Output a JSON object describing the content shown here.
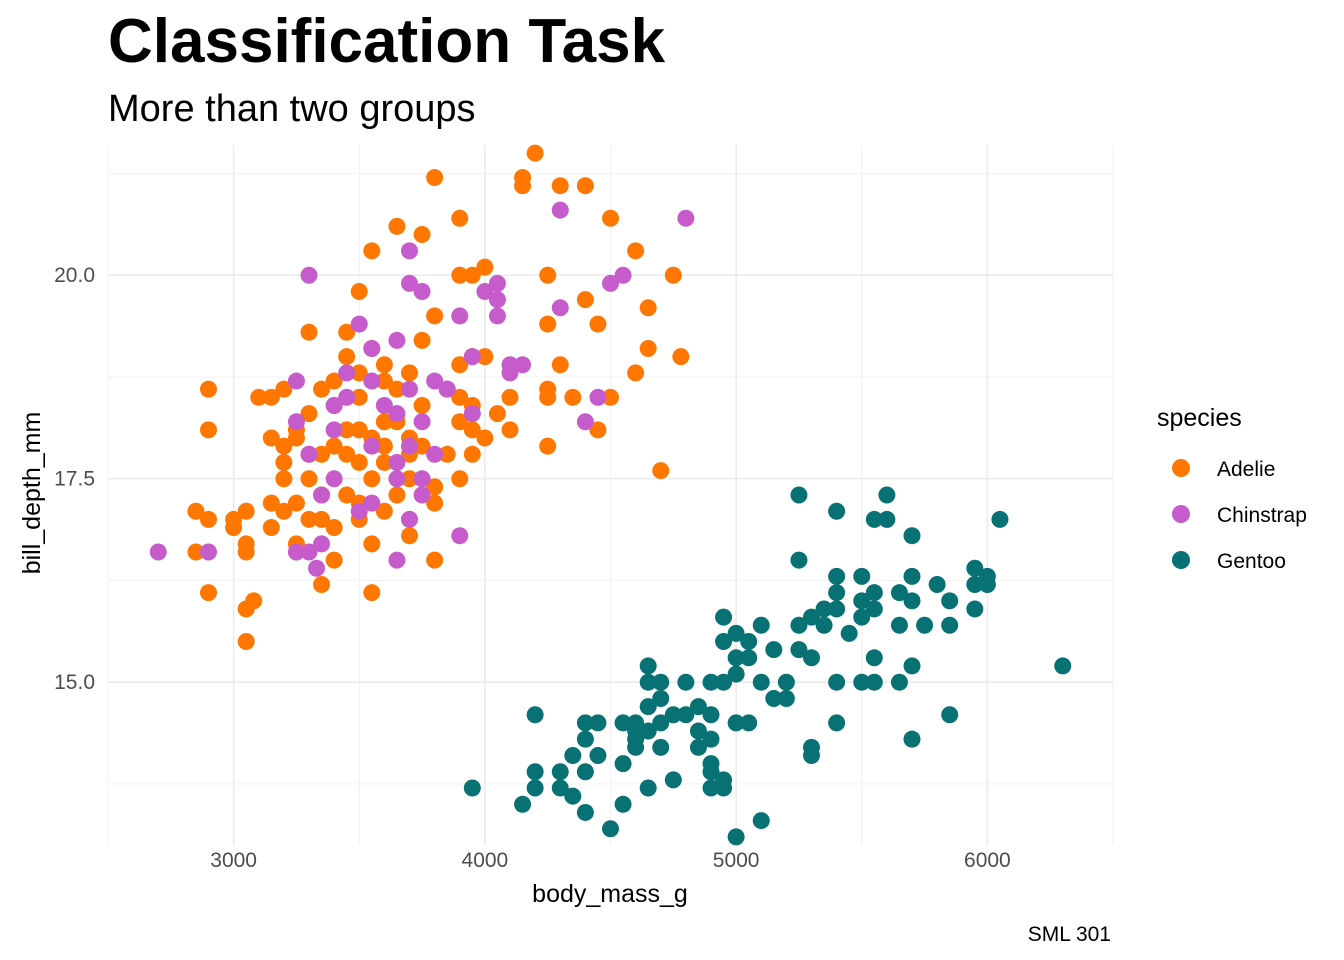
{
  "chart_data": {
    "type": "scatter",
    "title": "Classification Task",
    "subtitle": "More than two groups",
    "xlabel": "body_mass_g",
    "ylabel": "bill_depth_mm",
    "caption": "SML 301",
    "xlim": [
      2500,
      6500
    ],
    "ylim": [
      13.0,
      21.6
    ],
    "x_ticks": [
      3000,
      4000,
      5000,
      6000
    ],
    "x_tick_labels": [
      "3000",
      "4000",
      "5000",
      "6000"
    ],
    "y_ticks": [
      15.0,
      17.5,
      20.0
    ],
    "y_tick_labels": [
      "15.0",
      "17.5",
      "20.0"
    ],
    "grid": true,
    "legend": {
      "title": "species",
      "placement": "right"
    },
    "series": [
      {
        "name": "Adelie",
        "color": "#ff7700",
        "points": [
          [
            4200,
            21.5
          ],
          [
            4150,
            21.2
          ],
          [
            3800,
            21.2
          ],
          [
            4150,
            21.1
          ],
          [
            4400,
            21.1
          ],
          [
            4300,
            21.1
          ],
          [
            3900,
            20.7
          ],
          [
            4500,
            20.7
          ],
          [
            3650,
            20.6
          ],
          [
            3750,
            20.5
          ],
          [
            3550,
            20.3
          ],
          [
            4600,
            20.3
          ],
          [
            4000,
            20.1
          ],
          [
            3950,
            20.0
          ],
          [
            3900,
            20.0
          ],
          [
            4250,
            20.0
          ],
          [
            4750,
            20.0
          ],
          [
            3500,
            19.8
          ],
          [
            4400,
            19.7
          ],
          [
            4650,
            19.6
          ],
          [
            3800,
            19.5
          ],
          [
            3300,
            19.3
          ],
          [
            3450,
            19.3
          ],
          [
            4450,
            19.4
          ],
          [
            4250,
            19.4
          ],
          [
            3750,
            19.2
          ],
          [
            3550,
            19.1
          ],
          [
            3450,
            19.0
          ],
          [
            4000,
            19.0
          ],
          [
            3950,
            19.0
          ],
          [
            4650,
            19.1
          ],
          [
            3600,
            18.9
          ],
          [
            3500,
            18.8
          ],
          [
            3900,
            18.9
          ],
          [
            3700,
            18.8
          ],
          [
            4300,
            18.9
          ],
          [
            4600,
            18.8
          ],
          [
            4780,
            19.0
          ],
          [
            3400,
            18.7
          ],
          [
            3600,
            18.7
          ],
          [
            3650,
            18.6
          ],
          [
            3850,
            18.6
          ],
          [
            4250,
            18.6
          ],
          [
            3350,
            18.6
          ],
          [
            3200,
            18.6
          ],
          [
            2900,
            18.6
          ],
          [
            4100,
            18.5
          ],
          [
            3150,
            18.5
          ],
          [
            3100,
            18.5
          ],
          [
            3500,
            18.5
          ],
          [
            3900,
            18.5
          ],
          [
            4350,
            18.5
          ],
          [
            4250,
            18.5
          ],
          [
            4500,
            18.5
          ],
          [
            3400,
            18.4
          ],
          [
            3750,
            18.4
          ],
          [
            3950,
            18.4
          ],
          [
            3300,
            18.3
          ],
          [
            4050,
            18.3
          ],
          [
            3650,
            18.2
          ],
          [
            3900,
            18.2
          ],
          [
            3600,
            18.2
          ],
          [
            3250,
            18.1
          ],
          [
            4100,
            18.1
          ],
          [
            3500,
            18.1
          ],
          [
            3450,
            18.1
          ],
          [
            2900,
            18.1
          ],
          [
            3950,
            18.1
          ],
          [
            4450,
            18.1
          ],
          [
            3150,
            18.0
          ],
          [
            3700,
            18.0
          ],
          [
            3250,
            18.0
          ],
          [
            3550,
            18.0
          ],
          [
            4000,
            18.0
          ],
          [
            3200,
            17.9
          ],
          [
            3400,
            17.9
          ],
          [
            3600,
            17.9
          ],
          [
            3750,
            17.9
          ],
          [
            4250,
            17.9
          ],
          [
            3300,
            17.8
          ],
          [
            3350,
            17.8
          ],
          [
            3450,
            17.8
          ],
          [
            3700,
            17.8
          ],
          [
            3850,
            17.8
          ],
          [
            3950,
            17.8
          ],
          [
            3200,
            17.7
          ],
          [
            3500,
            17.7
          ],
          [
            3600,
            17.7
          ],
          [
            4700,
            17.6
          ],
          [
            3200,
            17.5
          ],
          [
            3300,
            17.5
          ],
          [
            3550,
            17.5
          ],
          [
            3700,
            17.5
          ],
          [
            3900,
            17.5
          ],
          [
            3800,
            17.4
          ],
          [
            3350,
            17.3
          ],
          [
            3450,
            17.3
          ],
          [
            3650,
            17.3
          ],
          [
            3150,
            17.2
          ],
          [
            3250,
            17.2
          ],
          [
            3500,
            17.2
          ],
          [
            3800,
            17.2
          ],
          [
            2850,
            17.1
          ],
          [
            3050,
            17.1
          ],
          [
            3200,
            17.1
          ],
          [
            3600,
            17.1
          ],
          [
            3300,
            17.0
          ],
          [
            3350,
            17.0
          ],
          [
            3500,
            17.0
          ],
          [
            3700,
            17.0
          ],
          [
            2900,
            17.0
          ],
          [
            3000,
            17.0
          ],
          [
            3150,
            16.9
          ],
          [
            3000,
            16.9
          ],
          [
            3400,
            16.9
          ],
          [
            3700,
            16.8
          ],
          [
            3050,
            16.7
          ],
          [
            3250,
            16.7
          ],
          [
            3550,
            16.7
          ],
          [
            2850,
            16.6
          ],
          [
            3050,
            16.6
          ],
          [
            3250,
            16.6
          ],
          [
            3400,
            16.5
          ],
          [
            3800,
            16.5
          ],
          [
            3350,
            16.2
          ],
          [
            2900,
            16.1
          ],
          [
            3550,
            16.1
          ],
          [
            3080,
            16.0
          ],
          [
            3050,
            15.9
          ],
          [
            3050,
            15.5
          ]
        ]
      },
      {
        "name": "Chinstrap",
        "color": "#c65ccb",
        "points": [
          [
            4300,
            20.8
          ],
          [
            4800,
            20.7
          ],
          [
            3700,
            20.3
          ],
          [
            3300,
            20.0
          ],
          [
            4550,
            20.0
          ],
          [
            4500,
            19.9
          ],
          [
            3700,
            19.9
          ],
          [
            4050,
            19.9
          ],
          [
            4000,
            19.8
          ],
          [
            3750,
            19.8
          ],
          [
            4050,
            19.7
          ],
          [
            4300,
            19.6
          ],
          [
            3900,
            19.5
          ],
          [
            4050,
            19.5
          ],
          [
            3500,
            19.4
          ],
          [
            3650,
            19.2
          ],
          [
            3550,
            19.1
          ],
          [
            3950,
            19.0
          ],
          [
            4100,
            18.9
          ],
          [
            4150,
            18.9
          ],
          [
            4100,
            18.8
          ],
          [
            3450,
            18.8
          ],
          [
            3800,
            18.7
          ],
          [
            3550,
            18.7
          ],
          [
            3250,
            18.7
          ],
          [
            3700,
            18.6
          ],
          [
            3850,
            18.6
          ],
          [
            3450,
            18.5
          ],
          [
            4450,
            18.5
          ],
          [
            3600,
            18.4
          ],
          [
            3400,
            18.4
          ],
          [
            3650,
            18.3
          ],
          [
            3950,
            18.3
          ],
          [
            4400,
            18.2
          ],
          [
            3750,
            18.2
          ],
          [
            3250,
            18.2
          ],
          [
            3400,
            18.1
          ],
          [
            3700,
            17.9
          ],
          [
            3550,
            17.9
          ],
          [
            3800,
            17.8
          ],
          [
            3300,
            17.8
          ],
          [
            3650,
            17.7
          ],
          [
            3750,
            17.5
          ],
          [
            3400,
            17.5
          ],
          [
            3650,
            17.5
          ],
          [
            3750,
            17.3
          ],
          [
            3350,
            17.3
          ],
          [
            3550,
            17.2
          ],
          [
            3500,
            17.1
          ],
          [
            3700,
            17.0
          ],
          [
            3900,
            16.8
          ],
          [
            3350,
            16.7
          ],
          [
            3250,
            16.6
          ],
          [
            3300,
            16.6
          ],
          [
            2700,
            16.6
          ],
          [
            2900,
            16.6
          ],
          [
            3650,
            16.5
          ],
          [
            3330,
            16.4
          ]
        ]
      },
      {
        "name": "Gentoo",
        "color": "#087173",
        "points": [
          [
            5250,
            17.3
          ],
          [
            5600,
            17.3
          ],
          [
            5400,
            17.1
          ],
          [
            5550,
            17.0
          ],
          [
            5600,
            17.0
          ],
          [
            6050,
            17.0
          ],
          [
            5700,
            16.8
          ],
          [
            5250,
            16.5
          ],
          [
            5950,
            16.4
          ],
          [
            5400,
            16.3
          ],
          [
            5500,
            16.3
          ],
          [
            6000,
            16.3
          ],
          [
            5700,
            16.3
          ],
          [
            5950,
            16.2
          ],
          [
            6000,
            16.2
          ],
          [
            5800,
            16.2
          ],
          [
            5400,
            16.1
          ],
          [
            5550,
            16.1
          ],
          [
            5650,
            16.1
          ],
          [
            5700,
            16.0
          ],
          [
            5850,
            16.0
          ],
          [
            5500,
            16.0
          ],
          [
            5400,
            15.9
          ],
          [
            5550,
            15.9
          ],
          [
            5950,
            15.9
          ],
          [
            5350,
            15.9
          ],
          [
            5300,
            15.8
          ],
          [
            4950,
            15.8
          ],
          [
            5500,
            15.8
          ],
          [
            5250,
            15.7
          ],
          [
            5100,
            15.7
          ],
          [
            5650,
            15.7
          ],
          [
            5750,
            15.7
          ],
          [
            5850,
            15.7
          ],
          [
            5350,
            15.7
          ],
          [
            5000,
            15.6
          ],
          [
            5450,
            15.6
          ],
          [
            5050,
            15.5
          ],
          [
            4950,
            15.5
          ],
          [
            5150,
            15.4
          ],
          [
            5250,
            15.4
          ],
          [
            5000,
            15.3
          ],
          [
            5300,
            15.3
          ],
          [
            5550,
            15.3
          ],
          [
            5050,
            15.3
          ],
          [
            6300,
            15.2
          ],
          [
            4650,
            15.2
          ],
          [
            5700,
            15.2
          ],
          [
            5000,
            15.1
          ],
          [
            4800,
            15.0
          ],
          [
            4650,
            15.0
          ],
          [
            4700,
            15.0
          ],
          [
            4950,
            15.0
          ],
          [
            5100,
            15.0
          ],
          [
            5400,
            15.0
          ],
          [
            5650,
            15.0
          ],
          [
            4900,
            15.0
          ],
          [
            5500,
            15.0
          ],
          [
            5550,
            15.0
          ],
          [
            5200,
            15.0
          ],
          [
            4700,
            14.8
          ],
          [
            5200,
            14.8
          ],
          [
            5150,
            14.8
          ],
          [
            4850,
            14.7
          ],
          [
            4650,
            14.7
          ],
          [
            4750,
            14.6
          ],
          [
            4900,
            14.6
          ],
          [
            4200,
            14.6
          ],
          [
            5850,
            14.6
          ],
          [
            4800,
            14.6
          ],
          [
            4600,
            14.5
          ],
          [
            4550,
            14.5
          ],
          [
            4400,
            14.5
          ],
          [
            4450,
            14.5
          ],
          [
            4700,
            14.5
          ],
          [
            5000,
            14.5
          ],
          [
            5400,
            14.5
          ],
          [
            5050,
            14.5
          ],
          [
            4600,
            14.4
          ],
          [
            4850,
            14.4
          ],
          [
            4650,
            14.4
          ],
          [
            4400,
            14.3
          ],
          [
            4600,
            14.3
          ],
          [
            4900,
            14.3
          ],
          [
            5700,
            14.3
          ],
          [
            4700,
            14.2
          ],
          [
            4600,
            14.2
          ],
          [
            4850,
            14.2
          ],
          [
            5300,
            14.2
          ],
          [
            4350,
            14.1
          ],
          [
            4450,
            14.1
          ],
          [
            4900,
            14.0
          ],
          [
            5300,
            14.1
          ],
          [
            4550,
            14.0
          ],
          [
            4400,
            13.9
          ],
          [
            4200,
            13.9
          ],
          [
            4300,
            13.9
          ],
          [
            4950,
            13.8
          ],
          [
            4650,
            13.7
          ],
          [
            4750,
            13.8
          ],
          [
            4900,
            13.9
          ],
          [
            3950,
            13.7
          ],
          [
            4200,
            13.7
          ],
          [
            4300,
            13.7
          ],
          [
            4350,
            13.6
          ],
          [
            4950,
            13.7
          ],
          [
            4900,
            13.7
          ],
          [
            4150,
            13.5
          ],
          [
            4550,
            13.5
          ],
          [
            4400,
            13.4
          ],
          [
            5100,
            13.3
          ],
          [
            4500,
            13.2
          ],
          [
            5000,
            13.1
          ]
        ]
      }
    ]
  }
}
